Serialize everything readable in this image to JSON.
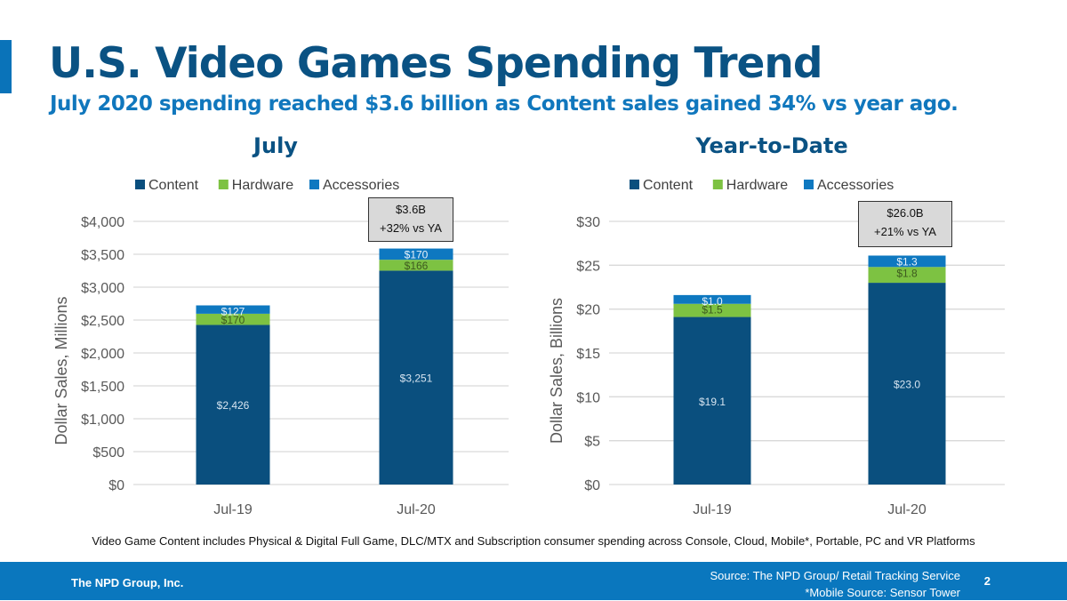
{
  "slide": {
    "title": "U.S. Video Games Spending Trend",
    "subtitle": "July 2020 spending reached $3.6 billion as Content sales gained 34% vs year ago.",
    "footnote": "Video Game Content includes Physical & Digital Full Game, DLC/MTX and Subscription consumer spending across Console, Cloud, Mobile*, Portable, PC and VR Platforms",
    "footer": {
      "company": "The NPD Group, Inc.",
      "source_line1": "Source: The NPD Group/ Retail Tracking Service",
      "source_line2": "*Mobile Source: Sensor Tower",
      "page_number": "2"
    }
  },
  "colors": {
    "content": "#0a4f7e",
    "hardware": "#7dc242",
    "accessories": "#0e78c0",
    "title": "#0a5283",
    "subtitle": "#1077bd",
    "footer": "#0a77be"
  },
  "chart_data": [
    {
      "type": "bar",
      "stacked": true,
      "title": "July",
      "categories": [
        "Jul-19",
        "Jul-20"
      ],
      "series": [
        {
          "name": "Content",
          "values": [
            2426,
            3251
          ],
          "labels": [
            "$2,426",
            "$3,251"
          ]
        },
        {
          "name": "Hardware",
          "values": [
            170,
            166
          ],
          "labels": [
            "$170",
            "$166"
          ]
        },
        {
          "name": "Accessories",
          "values": [
            127,
            170
          ],
          "labels": [
            "$127",
            "$170"
          ]
        }
      ],
      "xlabel": "",
      "ylabel": "Dollar Sales, Millions",
      "ylim": [
        0,
        4000
      ],
      "yticks": [
        0,
        500,
        1000,
        1500,
        2000,
        2500,
        3000,
        3500,
        4000
      ],
      "ytick_labels": [
        "$0",
        "$500",
        "$1,000",
        "$1,500",
        "$2,000",
        "$2,500",
        "$3,000",
        "$3,500",
        "$4,000"
      ],
      "grid": true,
      "legend": "top",
      "callout": {
        "category": "Jul-20",
        "line1": "$3.6B",
        "line2": "+32% vs YA"
      }
    },
    {
      "type": "bar",
      "stacked": true,
      "title": "Year-to-Date",
      "categories": [
        "Jul-19",
        "Jul-20"
      ],
      "series": [
        {
          "name": "Content",
          "values": [
            19.1,
            23.0
          ],
          "labels": [
            "$19.1",
            "$23.0"
          ]
        },
        {
          "name": "Hardware",
          "values": [
            1.5,
            1.8
          ],
          "labels": [
            "$1.5",
            "$1.8"
          ]
        },
        {
          "name": "Accessories",
          "values": [
            1.0,
            1.3
          ],
          "labels": [
            "$1.0",
            "$1.3"
          ]
        }
      ],
      "xlabel": "",
      "ylabel": "Dollar Sales, Billions",
      "ylim": [
        0,
        30
      ],
      "yticks": [
        0,
        5,
        10,
        15,
        20,
        25,
        30
      ],
      "ytick_labels": [
        "$0",
        "$5",
        "$10",
        "$15",
        "$20",
        "$25",
        "$30"
      ],
      "grid": true,
      "legend": "top",
      "callout": {
        "category": "Jul-20",
        "line1": "$26.0B",
        "line2": "+21% vs YA"
      }
    }
  ]
}
